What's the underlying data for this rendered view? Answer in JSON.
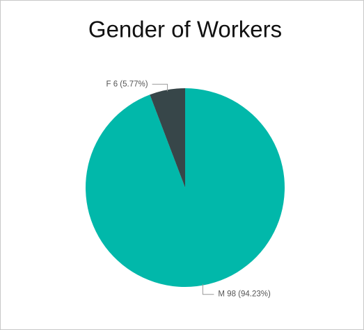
{
  "chart_data": {
    "type": "pie",
    "title": "Gender of Workers",
    "values": [
      98,
      6
    ],
    "value_labels": [
      "M 98 (94.23%)",
      "F 6 (5.77%)"
    ],
    "colors": [
      "#01b8aa",
      "#374649"
    ]
  }
}
